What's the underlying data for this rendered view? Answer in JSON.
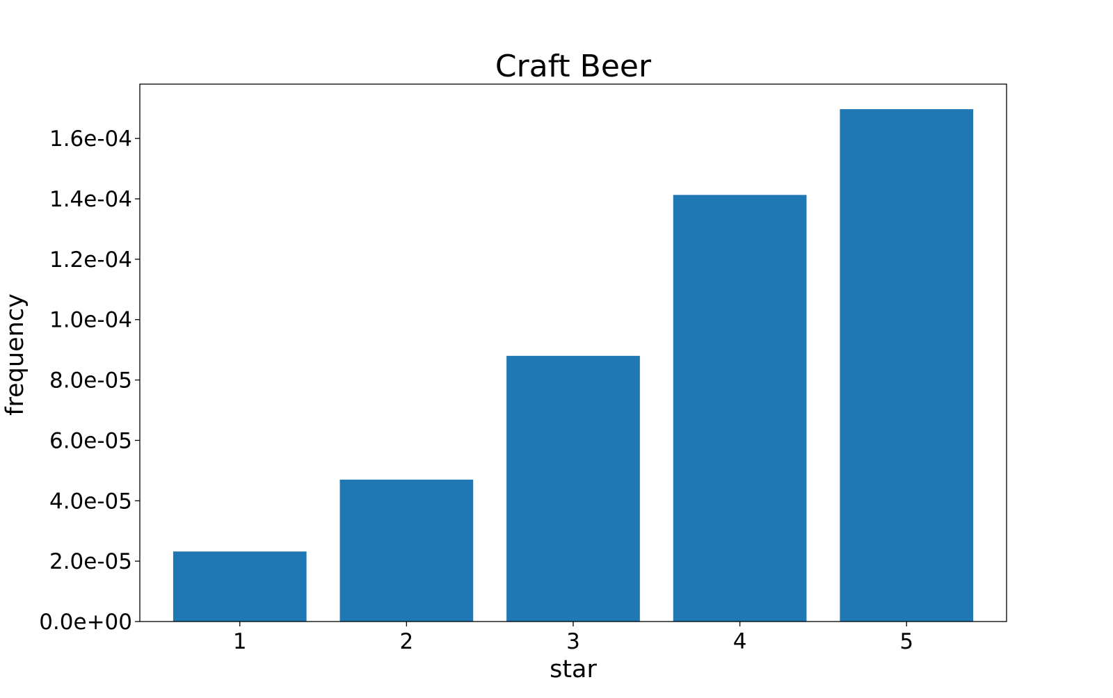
{
  "chart_data": {
    "type": "bar",
    "title": "Craft Beer",
    "xlabel": "star",
    "ylabel": "frequency",
    "categories": [
      "1",
      "2",
      "3",
      "4",
      "5"
    ],
    "values": [
      2.32e-05,
      4.7e-05,
      8.8e-05,
      0.0001413,
      0.0001697
    ],
    "ylim": [
      0,
      0.000178
    ],
    "yticks": [
      {
        "value": 0,
        "label": "0.0e+00"
      },
      {
        "value": 2e-05,
        "label": "2.0e-05"
      },
      {
        "value": 4e-05,
        "label": "4.0e-05"
      },
      {
        "value": 6e-05,
        "label": "6.0e-05"
      },
      {
        "value": 8e-05,
        "label": "8.0e-05"
      },
      {
        "value": 0.0001,
        "label": "1.0e-04"
      },
      {
        "value": 0.00012,
        "label": "1.2e-04"
      },
      {
        "value": 0.00014,
        "label": "1.4e-04"
      },
      {
        "value": 0.00016,
        "label": "1.6e-04"
      }
    ],
    "grid": false,
    "bar_color": "#1f77b4"
  }
}
